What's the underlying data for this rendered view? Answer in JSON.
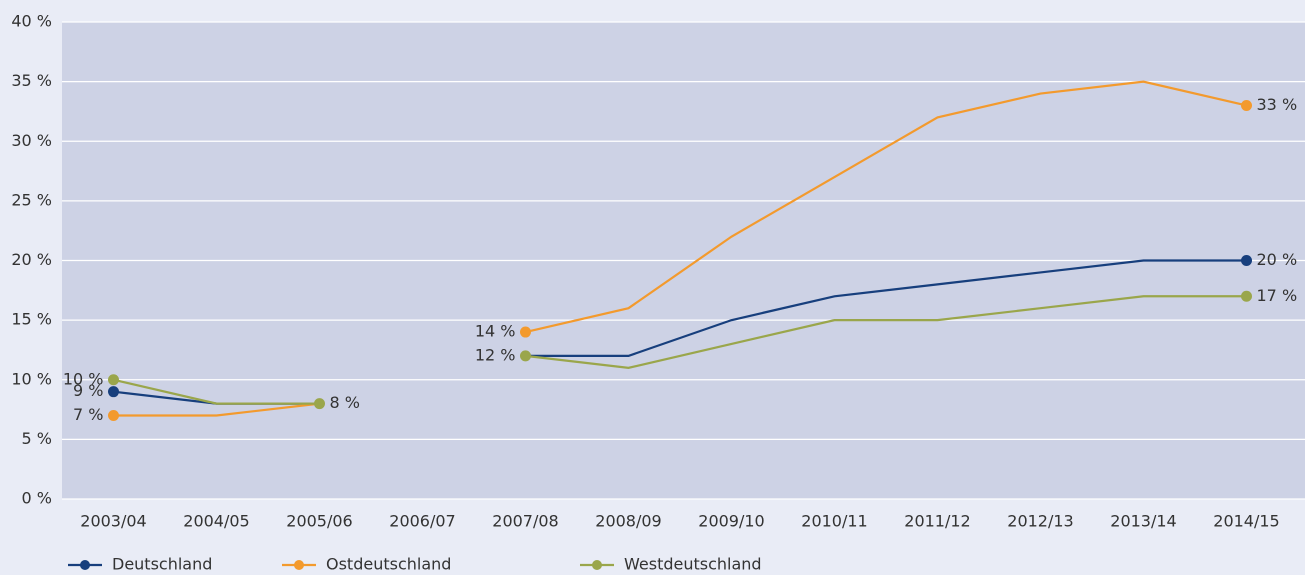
{
  "chart_data": {
    "type": "line",
    "categories": [
      "2003/04",
      "2004/05",
      "2005/06",
      "2006/07",
      "2007/08",
      "2008/09",
      "2009/10",
      "2010/11",
      "2011/12",
      "2012/13",
      "2013/14",
      "2014/15"
    ],
    "series": [
      {
        "name": "Deutschland",
        "color": "#173f7d",
        "values": [
          9,
          8,
          8,
          null,
          12,
          12,
          15,
          17,
          18,
          19,
          20,
          20
        ],
        "value_labels": [
          "9 %",
          null,
          null,
          null,
          null,
          null,
          null,
          null,
          null,
          null,
          null,
          "20 %"
        ]
      },
      {
        "name": "Ostdeutschland",
        "color": "#f39a2d",
        "values": [
          7,
          7,
          8,
          null,
          14,
          16,
          22,
          27,
          32,
          34,
          35,
          33
        ],
        "value_labels": [
          "7 %",
          null,
          null,
          null,
          "14 %",
          null,
          null,
          null,
          null,
          null,
          null,
          "33 %"
        ]
      },
      {
        "name": "Westdeutschland",
        "color": "#9aa64b",
        "values": [
          10,
          8,
          8,
          null,
          12,
          11,
          13,
          15,
          15,
          16,
          17,
          17
        ],
        "value_labels": [
          "10 %",
          null,
          "8 %",
          null,
          "12 %",
          null,
          null,
          null,
          null,
          null,
          null,
          "17 %"
        ]
      }
    ],
    "ylim": [
      0,
      40
    ],
    "yticks": [
      {
        "value": 0,
        "label": "0 %"
      },
      {
        "value": 5,
        "label": "5 %"
      },
      {
        "value": 10,
        "label": "10 %"
      },
      {
        "value": 15,
        "label": "15 %"
      },
      {
        "value": 20,
        "label": "20 %"
      },
      {
        "value": 25,
        "label": "25 %"
      },
      {
        "value": 30,
        "label": "30 %"
      },
      {
        "value": 35,
        "label": "35 %"
      },
      {
        "value": 40,
        "label": "40 %"
      }
    ],
    "grid": true
  }
}
